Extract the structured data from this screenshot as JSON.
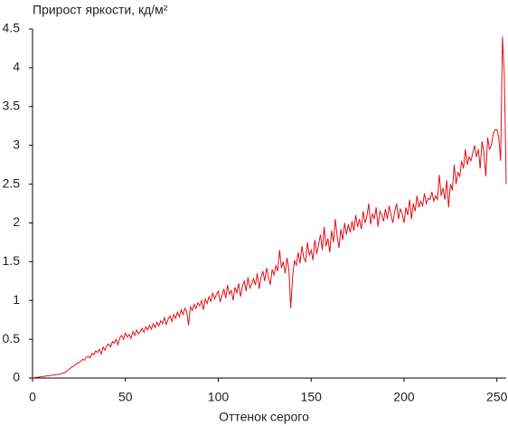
{
  "chart_data": {
    "type": "line",
    "title": "Прирост яркости, кд/м²",
    "x_label": "Оттенок серого",
    "xlim": [
      0,
      255
    ],
    "xticks": [
      0,
      50,
      100,
      150,
      200,
      250
    ],
    "ylim": [
      0,
      4.5
    ],
    "yticks": [
      0,
      0.5,
      1,
      1.5,
      2,
      2.5,
      3,
      3.5,
      4,
      4.5
    ],
    "grid": false,
    "x": [
      0,
      1,
      2,
      3,
      4,
      5,
      6,
      7,
      8,
      9,
      10,
      11,
      12,
      13,
      14,
      15,
      16,
      17,
      18,
      19,
      20,
      21,
      22,
      23,
      24,
      25,
      26,
      27,
      28,
      29,
      30,
      31,
      32,
      33,
      34,
      35,
      36,
      37,
      38,
      39,
      40,
      41,
      42,
      43,
      44,
      45,
      46,
      47,
      48,
      49,
      50,
      51,
      52,
      53,
      54,
      55,
      56,
      57,
      58,
      59,
      60,
      61,
      62,
      63,
      64,
      65,
      66,
      67,
      68,
      69,
      70,
      71,
      72,
      73,
      74,
      75,
      76,
      77,
      78,
      79,
      80,
      81,
      82,
      83,
      84,
      85,
      86,
      87,
      88,
      89,
      90,
      91,
      92,
      93,
      94,
      95,
      96,
      97,
      98,
      99,
      100,
      101,
      102,
      103,
      104,
      105,
      106,
      107,
      108,
      109,
      110,
      111,
      112,
      113,
      114,
      115,
      116,
      117,
      118,
      119,
      120,
      121,
      122,
      123,
      124,
      125,
      126,
      127,
      128,
      129,
      130,
      131,
      132,
      133,
      134,
      135,
      136,
      137,
      138,
      139,
      140,
      141,
      142,
      143,
      144,
      145,
      146,
      147,
      148,
      149,
      150,
      151,
      152,
      153,
      154,
      155,
      156,
      157,
      158,
      159,
      160,
      161,
      162,
      163,
      164,
      165,
      166,
      167,
      168,
      169,
      170,
      171,
      172,
      173,
      174,
      175,
      176,
      177,
      178,
      179,
      180,
      181,
      182,
      183,
      184,
      185,
      186,
      187,
      188,
      189,
      190,
      191,
      192,
      193,
      194,
      195,
      196,
      197,
      198,
      199,
      200,
      201,
      202,
      203,
      204,
      205,
      206,
      207,
      208,
      209,
      210,
      211,
      212,
      213,
      214,
      215,
      216,
      217,
      218,
      219,
      220,
      221,
      222,
      223,
      224,
      225,
      226,
      227,
      228,
      229,
      230,
      231,
      232,
      233,
      234,
      235,
      236,
      237,
      238,
      239,
      240,
      241,
      242,
      243,
      244,
      245,
      246,
      247,
      248,
      249,
      250,
      251,
      252,
      253,
      254,
      255
    ],
    "series": [
      {
        "color": "#e0101a",
        "values": [
          0,
          0.005,
          0.01,
          0.01,
          0.015,
          0.02,
          0.02,
          0.025,
          0.03,
          0.03,
          0.035,
          0.04,
          0.04,
          0.045,
          0.05,
          0.05,
          0.06,
          0.07,
          0.08,
          0.1,
          0.12,
          0.14,
          0.15,
          0.17,
          0.19,
          0.2,
          0.22,
          0.24,
          0.23,
          0.27,
          0.28,
          0.26,
          0.32,
          0.3,
          0.35,
          0.33,
          0.37,
          0.31,
          0.4,
          0.36,
          0.42,
          0.44,
          0.4,
          0.47,
          0.45,
          0.5,
          0.43,
          0.52,
          0.55,
          0.5,
          0.58,
          0.53,
          0.56,
          0.51,
          0.6,
          0.55,
          0.62,
          0.57,
          0.6,
          0.64,
          0.59,
          0.66,
          0.62,
          0.68,
          0.63,
          0.7,
          0.65,
          0.72,
          0.67,
          0.74,
          0.7,
          0.78,
          0.69,
          0.76,
          0.8,
          0.73,
          0.82,
          0.77,
          0.85,
          0.79,
          0.88,
          0.82,
          0.9,
          0.86,
          0.68,
          0.92,
          0.87,
          0.95,
          0.9,
          0.97,
          0.93,
          1.0,
          0.88,
          1.02,
          0.96,
          1.05,
          0.99,
          1.1,
          1.02,
          1.08,
          1.12,
          0.98,
          1.06,
          1.15,
          1.03,
          1.2,
          1.08,
          1.13,
          1.0,
          1.17,
          1.1,
          1.22,
          1.05,
          1.18,
          1.25,
          1.12,
          1.3,
          1.16,
          1.21,
          1.28,
          1.2,
          1.35,
          1.15,
          1.3,
          1.38,
          1.25,
          1.42,
          1.3,
          1.2,
          1.4,
          1.33,
          1.45,
          1.38,
          1.65,
          1.42,
          1.5,
          1.35,
          1.55,
          1.4,
          0.9,
          1.3,
          1.52,
          1.45,
          1.62,
          1.48,
          1.7,
          1.55,
          1.5,
          1.75,
          1.58,
          1.65,
          1.52,
          1.78,
          1.6,
          1.72,
          1.85,
          1.65,
          1.95,
          1.7,
          1.8,
          1.62,
          1.9,
          1.75,
          2.05,
          1.83,
          1.68,
          1.92,
          1.78,
          2.0,
          1.85,
          1.98,
          1.88,
          2.02,
          1.9,
          2.1,
          1.95,
          2.05,
          1.92,
          2.15,
          2.0,
          2.08,
          2.25,
          1.98,
          2.12,
          2.05,
          2.2,
          1.95,
          2.15,
          2.1,
          2.02,
          2.18,
          2.05,
          2.22,
          2.1,
          2.0,
          2.15,
          2.25,
          2.05,
          2.18,
          2.12,
          2.0,
          2.2,
          2.1,
          2.3,
          2.05,
          2.25,
          2.15,
          2.35,
          2.2,
          2.28,
          2.22,
          2.38,
          2.25,
          2.32,
          2.3,
          2.4,
          2.28,
          2.35,
          2.3,
          2.62,
          2.35,
          2.45,
          2.3,
          2.55,
          2.2,
          2.5,
          2.42,
          2.75,
          2.5,
          2.65,
          2.6,
          2.8,
          2.7,
          2.95,
          2.75,
          2.85,
          2.8,
          2.9,
          3.0,
          2.85,
          2.95,
          2.7,
          3.05,
          2.9,
          2.6,
          3.1,
          2.95,
          3.0,
          3.15,
          3.2,
          3.2,
          3.1,
          2.8,
          4.4,
          3.9,
          2.5
        ]
      }
    ]
  }
}
